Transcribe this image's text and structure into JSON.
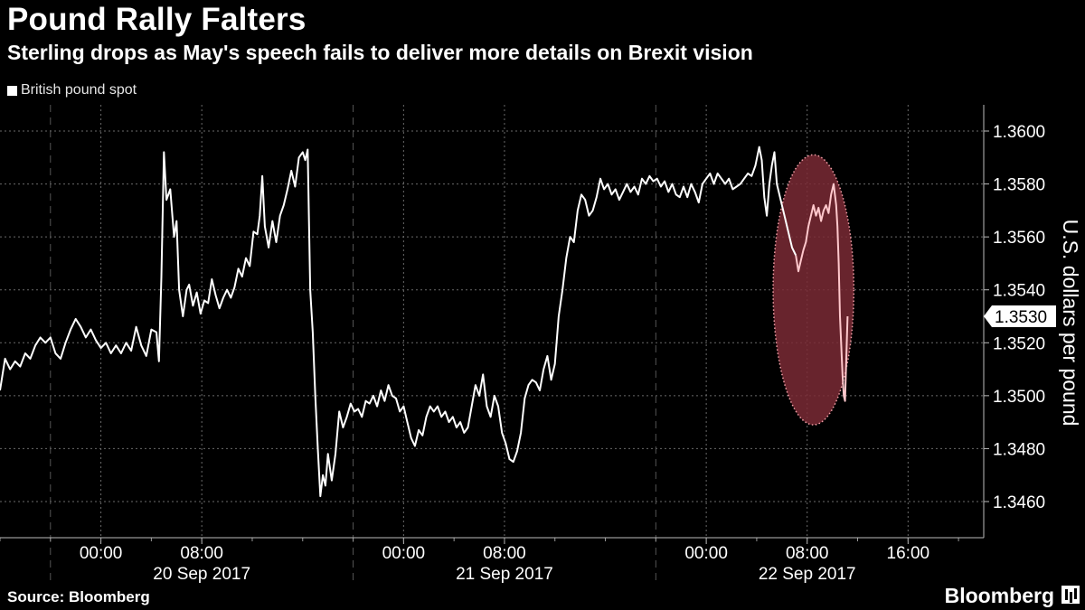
{
  "header": {
    "title": "Pound Rally Falters",
    "subtitle": "Sterling drops as May's speech fails to deliver more details on Brexit vision"
  },
  "legend": {
    "label": "British pound spot"
  },
  "footer": {
    "source": "Source: Bloomberg",
    "brand": "Bloomberg"
  },
  "colors": {
    "background": "#000000",
    "line": "#ffffff",
    "highlight_fill": "#7a2a35",
    "highlight_stroke": "#f2a0a8",
    "highlight_line": "#ffc8cc",
    "grid": "#6a6a6a"
  },
  "chart_data": {
    "type": "line",
    "title": "Pound Rally Falters",
    "subtitle": "Sterling drops as May's speech fails to deliver more details on Brexit vision",
    "ylabel": "U.S. dollars per pound",
    "ylim": [
      1.3448,
      1.3608
    ],
    "x_unit": "hours since 00:00 20 Sep 2017",
    "xlim": [
      -8,
      70
    ],
    "y_ticks": [
      "1.3460",
      "1.3480",
      "1.3500",
      "1.3520",
      "1.3540",
      "1.3560",
      "1.3580",
      "1.3600"
    ],
    "x_ticks": [
      {
        "hour": 0,
        "label": "00:00"
      },
      {
        "hour": 8,
        "label": "08:00"
      },
      {
        "hour": 24,
        "label": "00:00"
      },
      {
        "hour": 32,
        "label": "08:00"
      },
      {
        "hour": 48,
        "label": "00:00"
      },
      {
        "hour": 56,
        "label": "08:00"
      },
      {
        "hour": 64,
        "label": "16:00"
      }
    ],
    "day_labels": [
      {
        "hour": 8,
        "label": "20 Sep 2017"
      },
      {
        "hour": 32,
        "label": "21 Sep 2017"
      },
      {
        "hour": 56,
        "label": "22 Sep 2017"
      }
    ],
    "day_boundaries": [
      -4,
      20,
      44
    ],
    "last_value": "1.3530",
    "grid": true,
    "legend_position": "top-left",
    "annotation": {
      "shape": "ellipse",
      "x_range": [
        53.3,
        59.7
      ],
      "y_range": [
        1.3489,
        1.3591
      ]
    },
    "series": [
      {
        "name": "British pound spot",
        "points": [
          [
            -8,
            1.3502
          ],
          [
            -7.6,
            1.3514
          ],
          [
            -7.2,
            1.351
          ],
          [
            -6.8,
            1.3513
          ],
          [
            -6.4,
            1.3511
          ],
          [
            -6.0,
            1.3516
          ],
          [
            -5.6,
            1.3514
          ],
          [
            -5.2,
            1.3519
          ],
          [
            -4.8,
            1.3522
          ],
          [
            -4.4,
            1.352
          ],
          [
            -4.0,
            1.3522
          ],
          [
            -3.6,
            1.3516
          ],
          [
            -3.2,
            1.3514
          ],
          [
            -2.8,
            1.352
          ],
          [
            -2.4,
            1.3525
          ],
          [
            -2.0,
            1.3529
          ],
          [
            -1.6,
            1.3526
          ],
          [
            -1.2,
            1.3522
          ],
          [
            -0.8,
            1.3525
          ],
          [
            -0.4,
            1.3521
          ],
          [
            0,
            1.3518
          ],
          [
            0.4,
            1.352
          ],
          [
            0.8,
            1.3516
          ],
          [
            1.2,
            1.3519
          ],
          [
            1.6,
            1.3516
          ],
          [
            2.0,
            1.352
          ],
          [
            2.4,
            1.3517
          ],
          [
            2.8,
            1.3526
          ],
          [
            3.2,
            1.3519
          ],
          [
            3.6,
            1.3515
          ],
          [
            4.0,
            1.3525
          ],
          [
            4.4,
            1.3524
          ],
          [
            4.6,
            1.3513
          ],
          [
            4.8,
            1.3545
          ],
          [
            5.0,
            1.3592
          ],
          [
            5.2,
            1.3574
          ],
          [
            5.5,
            1.3578
          ],
          [
            5.8,
            1.356
          ],
          [
            6.0,
            1.3566
          ],
          [
            6.2,
            1.354
          ],
          [
            6.5,
            1.353
          ],
          [
            6.8,
            1.354
          ],
          [
            7.0,
            1.3542
          ],
          [
            7.3,
            1.3534
          ],
          [
            7.6,
            1.3539
          ],
          [
            7.9,
            1.3531
          ],
          [
            8.2,
            1.3536
          ],
          [
            8.5,
            1.3535
          ],
          [
            8.8,
            1.3544
          ],
          [
            9.1,
            1.3538
          ],
          [
            9.4,
            1.3533
          ],
          [
            9.7,
            1.3537
          ],
          [
            10.0,
            1.354
          ],
          [
            10.3,
            1.3537
          ],
          [
            10.6,
            1.3541
          ],
          [
            10.9,
            1.3548
          ],
          [
            11.2,
            1.3545
          ],
          [
            11.5,
            1.3552
          ],
          [
            11.8,
            1.3549
          ],
          [
            12.1,
            1.3562
          ],
          [
            12.4,
            1.3561
          ],
          [
            12.6,
            1.3568
          ],
          [
            12.8,
            1.3583
          ],
          [
            13.0,
            1.3564
          ],
          [
            13.3,
            1.3556
          ],
          [
            13.6,
            1.3566
          ],
          [
            13.9,
            1.3558
          ],
          [
            14.2,
            1.3568
          ],
          [
            14.5,
            1.3572
          ],
          [
            14.8,
            1.3578
          ],
          [
            15.1,
            1.3585
          ],
          [
            15.4,
            1.3579
          ],
          [
            15.7,
            1.359
          ],
          [
            16.0,
            1.3592
          ],
          [
            16.2,
            1.3589
          ],
          [
            16.4,
            1.3593
          ],
          [
            16.6,
            1.354
          ],
          [
            16.8,
            1.3524
          ],
          [
            17.0,
            1.35
          ],
          [
            17.2,
            1.348
          ],
          [
            17.4,
            1.3462
          ],
          [
            17.6,
            1.347
          ],
          [
            17.8,
            1.3466
          ],
          [
            18.0,
            1.3478
          ],
          [
            18.3,
            1.3468
          ],
          [
            18.6,
            1.3478
          ],
          [
            18.9,
            1.3494
          ],
          [
            19.2,
            1.3488
          ],
          [
            19.5,
            1.3492
          ],
          [
            19.8,
            1.3497
          ],
          [
            20.1,
            1.3494
          ],
          [
            20.4,
            1.3495
          ],
          [
            20.7,
            1.3492
          ],
          [
            21.0,
            1.3498
          ],
          [
            21.3,
            1.3497
          ],
          [
            21.6,
            1.35
          ],
          [
            21.9,
            1.3496
          ],
          [
            22.2,
            1.3502
          ],
          [
            22.5,
            1.3498
          ],
          [
            22.8,
            1.3504
          ],
          [
            23.1,
            1.35
          ],
          [
            23.4,
            1.3499
          ],
          [
            23.7,
            1.3494
          ],
          [
            24.0,
            1.3496
          ],
          [
            24.3,
            1.349
          ],
          [
            24.6,
            1.3484
          ],
          [
            24.9,
            1.3481
          ],
          [
            25.2,
            1.3487
          ],
          [
            25.5,
            1.3485
          ],
          [
            25.8,
            1.3492
          ],
          [
            26.1,
            1.3496
          ],
          [
            26.4,
            1.3494
          ],
          [
            26.7,
            1.3496
          ],
          [
            27.0,
            1.3492
          ],
          [
            27.3,
            1.3494
          ],
          [
            27.6,
            1.349
          ],
          [
            27.9,
            1.3492
          ],
          [
            28.2,
            1.3488
          ],
          [
            28.5,
            1.349
          ],
          [
            28.8,
            1.3486
          ],
          [
            29.1,
            1.3488
          ],
          [
            29.4,
            1.3496
          ],
          [
            29.7,
            1.3504
          ],
          [
            30.0,
            1.35
          ],
          [
            30.3,
            1.3508
          ],
          [
            30.6,
            1.3496
          ],
          [
            30.9,
            1.3492
          ],
          [
            31.2,
            1.35
          ],
          [
            31.5,
            1.3496
          ],
          [
            31.8,
            1.3486
          ],
          [
            32.1,
            1.3482
          ],
          [
            32.4,
            1.3476
          ],
          [
            32.7,
            1.3475
          ],
          [
            33.0,
            1.3479
          ],
          [
            33.3,
            1.3486
          ],
          [
            33.6,
            1.3499
          ],
          [
            33.9,
            1.3504
          ],
          [
            34.2,
            1.3506
          ],
          [
            34.5,
            1.3505
          ],
          [
            34.8,
            1.3502
          ],
          [
            35.1,
            1.351
          ],
          [
            35.4,
            1.3515
          ],
          [
            35.7,
            1.3506
          ],
          [
            36.0,
            1.3512
          ],
          [
            36.3,
            1.353
          ],
          [
            36.6,
            1.354
          ],
          [
            36.9,
            1.3552
          ],
          [
            37.2,
            1.356
          ],
          [
            37.5,
            1.3558
          ],
          [
            37.8,
            1.357
          ],
          [
            38.1,
            1.3576
          ],
          [
            38.4,
            1.3574
          ],
          [
            38.7,
            1.3568
          ],
          [
            39.0,
            1.357
          ],
          [
            39.3,
            1.3575
          ],
          [
            39.6,
            1.3582
          ],
          [
            39.9,
            1.3578
          ],
          [
            40.2,
            1.358
          ],
          [
            40.5,
            1.3576
          ],
          [
            40.8,
            1.3578
          ],
          [
            41.1,
            1.3574
          ],
          [
            41.4,
            1.3577
          ],
          [
            41.7,
            1.358
          ],
          [
            42.0,
            1.3577
          ],
          [
            42.3,
            1.3579
          ],
          [
            42.6,
            1.3576
          ],
          [
            42.9,
            1.3582
          ],
          [
            43.2,
            1.358
          ],
          [
            43.5,
            1.3583
          ],
          [
            43.8,
            1.3581
          ],
          [
            44.1,
            1.3582
          ],
          [
            44.4,
            1.3579
          ],
          [
            44.7,
            1.3581
          ],
          [
            45.0,
            1.3577
          ],
          [
            45.3,
            1.358
          ],
          [
            45.6,
            1.3576
          ],
          [
            45.9,
            1.3575
          ],
          [
            46.2,
            1.3579
          ],
          [
            46.5,
            1.3575
          ],
          [
            46.8,
            1.358
          ],
          [
            47.1,
            1.3577
          ],
          [
            47.4,
            1.3573
          ],
          [
            47.7,
            1.358
          ],
          [
            48.0,
            1.3582
          ],
          [
            48.3,
            1.3584
          ],
          [
            48.6,
            1.358
          ],
          [
            48.9,
            1.3584
          ],
          [
            49.2,
            1.3582
          ],
          [
            49.5,
            1.358
          ],
          [
            49.8,
            1.3582
          ],
          [
            50.1,
            1.3578
          ],
          [
            50.4,
            1.3579
          ],
          [
            50.7,
            1.358
          ],
          [
            51.0,
            1.3582
          ],
          [
            51.3,
            1.3584
          ],
          [
            51.6,
            1.3583
          ],
          [
            51.9,
            1.3587
          ],
          [
            52.2,
            1.3594
          ],
          [
            52.4,
            1.3589
          ],
          [
            52.6,
            1.3575
          ],
          [
            52.8,
            1.3568
          ],
          [
            53.0,
            1.358
          ],
          [
            53.2,
            1.3587
          ],
          [
            53.4,
            1.3592
          ],
          [
            53.6,
            1.358
          ],
          [
            53.9,
            1.3574
          ],
          [
            54.2,
            1.3568
          ],
          [
            54.5,
            1.3562
          ],
          [
            54.8,
            1.3556
          ],
          [
            55.1,
            1.3553
          ]
        ]
      },
      {
        "name": "British pound spot (highlighted)",
        "points": [
          [
            55.1,
            1.3553
          ],
          [
            55.3,
            1.3547
          ],
          [
            55.5,
            1.3551
          ],
          [
            55.7,
            1.3555
          ],
          [
            55.9,
            1.3558
          ],
          [
            56.1,
            1.3564
          ],
          [
            56.3,
            1.3568
          ],
          [
            56.5,
            1.3572
          ],
          [
            56.7,
            1.3568
          ],
          [
            56.9,
            1.3571
          ],
          [
            57.1,
            1.3566
          ],
          [
            57.3,
            1.357
          ],
          [
            57.5,
            1.3572
          ],
          [
            57.7,
            1.3569
          ],
          [
            57.9,
            1.3576
          ],
          [
            58.1,
            1.358
          ],
          [
            58.3,
            1.3572
          ],
          [
            58.4,
            1.3564
          ],
          [
            58.5,
            1.355
          ],
          [
            58.6,
            1.353
          ],
          [
            58.7,
            1.3519
          ],
          [
            58.8,
            1.3508
          ],
          [
            58.9,
            1.35
          ],
          [
            59.0,
            1.3498
          ],
          [
            59.1,
            1.3514
          ],
          [
            59.2,
            1.353
          ]
        ]
      }
    ]
  }
}
